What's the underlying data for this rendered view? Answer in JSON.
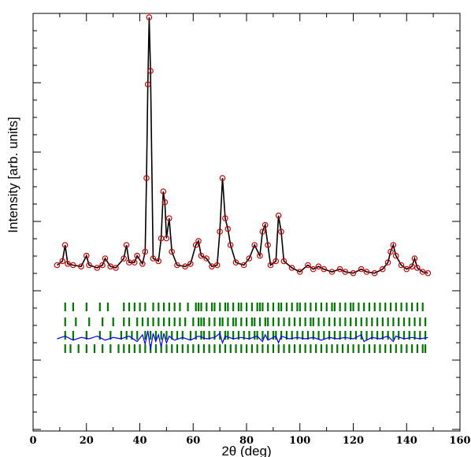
{
  "chart_data": {
    "type": "line",
    "title": "",
    "xlabel": "2θ (deg)",
    "ylabel": "Intensity [arb. units]",
    "xlim": [
      0,
      160
    ],
    "xticks": [
      0,
      20,
      40,
      60,
      80,
      100,
      120,
      140,
      160
    ],
    "x_tick_labels": [
      "0",
      "20",
      "40",
      "60",
      "80",
      "100",
      "120",
      "140",
      "160"
    ],
    "y_tick_labels_shown": false,
    "grid": false,
    "legend": "none",
    "x_range_measured": [
      9,
      148
    ],
    "series": [
      {
        "kind": "observed",
        "marker": "open-circle",
        "color": "#cc0000",
        "points": [
          [
            9,
            0.15
          ],
          [
            11,
            0.18
          ],
          [
            12,
            0.3
          ],
          [
            13,
            0.16
          ],
          [
            15,
            0.15
          ],
          [
            18,
            0.14
          ],
          [
            20,
            0.22
          ],
          [
            21,
            0.15
          ],
          [
            24,
            0.13
          ],
          [
            26,
            0.15
          ],
          [
            27,
            0.2
          ],
          [
            29,
            0.14
          ],
          [
            31,
            0.13
          ],
          [
            34,
            0.2
          ],
          [
            35,
            0.3
          ],
          [
            36,
            0.17
          ],
          [
            38,
            0.17
          ],
          [
            39,
            0.22
          ],
          [
            41,
            0.16
          ],
          [
            42,
            0.25
          ],
          [
            42.5,
            0.8
          ],
          [
            43,
            1.5
          ],
          [
            43.5,
            2.0
          ],
          [
            44,
            1.6
          ],
          [
            45,
            0.2
          ],
          [
            47,
            0.18
          ],
          [
            48,
            0.35
          ],
          [
            48.8,
            0.7
          ],
          [
            49.4,
            0.62
          ],
          [
            50,
            0.35
          ],
          [
            51,
            0.5
          ],
          [
            52,
            0.25
          ],
          [
            54,
            0.15
          ],
          [
            57,
            0.14
          ],
          [
            59,
            0.16
          ],
          [
            61,
            0.3
          ],
          [
            62,
            0.33
          ],
          [
            63,
            0.22
          ],
          [
            65,
            0.2
          ],
          [
            67,
            0.14
          ],
          [
            69,
            0.15
          ],
          [
            70,
            0.4
          ],
          [
            71,
            0.8
          ],
          [
            72,
            0.5
          ],
          [
            73,
            0.42
          ],
          [
            74,
            0.3
          ],
          [
            76,
            0.17
          ],
          [
            79,
            0.15
          ],
          [
            81,
            0.2
          ],
          [
            83,
            0.3
          ],
          [
            85,
            0.22
          ],
          [
            86,
            0.4
          ],
          [
            87,
            0.45
          ],
          [
            88,
            0.3
          ],
          [
            89,
            0.15
          ],
          [
            91,
            0.18
          ],
          [
            92,
            0.52
          ],
          [
            93,
            0.4
          ],
          [
            94,
            0.18
          ],
          [
            97,
            0.13
          ],
          [
            100,
            0.1
          ],
          [
            103,
            0.15
          ],
          [
            105,
            0.12
          ],
          [
            107,
            0.14
          ],
          [
            109,
            0.12
          ],
          [
            112,
            0.1
          ],
          [
            115,
            0.12
          ],
          [
            117,
            0.1
          ],
          [
            120,
            0.09
          ],
          [
            123,
            0.12
          ],
          [
            125,
            0.1
          ],
          [
            128,
            0.09
          ],
          [
            131,
            0.12
          ],
          [
            133,
            0.17
          ],
          [
            134,
            0.25
          ],
          [
            135,
            0.3
          ],
          [
            136,
            0.22
          ],
          [
            138,
            0.15
          ],
          [
            140,
            0.12
          ],
          [
            142,
            0.14
          ],
          [
            143,
            0.2
          ],
          [
            144,
            0.13
          ],
          [
            146,
            0.1
          ],
          [
            148,
            0.09
          ]
        ]
      },
      {
        "kind": "calculated",
        "color": "#000000",
        "points": [
          [
            9,
            0.15
          ],
          [
            11,
            0.18
          ],
          [
            12,
            0.3
          ],
          [
            13,
            0.16
          ],
          [
            15,
            0.15
          ],
          [
            18,
            0.14
          ],
          [
            20,
            0.22
          ],
          [
            21,
            0.15
          ],
          [
            24,
            0.13
          ],
          [
            26,
            0.15
          ],
          [
            27,
            0.2
          ],
          [
            29,
            0.14
          ],
          [
            31,
            0.13
          ],
          [
            34,
            0.2
          ],
          [
            35,
            0.3
          ],
          [
            36,
            0.17
          ],
          [
            38,
            0.17
          ],
          [
            39,
            0.22
          ],
          [
            41,
            0.16
          ],
          [
            42,
            0.25
          ],
          [
            42.5,
            0.8
          ],
          [
            43,
            1.5
          ],
          [
            43.5,
            2.0
          ],
          [
            44,
            1.6
          ],
          [
            45,
            0.2
          ],
          [
            47,
            0.18
          ],
          [
            48,
            0.35
          ],
          [
            48.8,
            0.7
          ],
          [
            49.4,
            0.62
          ],
          [
            50,
            0.35
          ],
          [
            51,
            0.5
          ],
          [
            52,
            0.25
          ],
          [
            54,
            0.15
          ],
          [
            57,
            0.14
          ],
          [
            59,
            0.16
          ],
          [
            61,
            0.3
          ],
          [
            62,
            0.33
          ],
          [
            63,
            0.22
          ],
          [
            65,
            0.2
          ],
          [
            67,
            0.14
          ],
          [
            69,
            0.15
          ],
          [
            70,
            0.4
          ],
          [
            71,
            0.8
          ],
          [
            72,
            0.5
          ],
          [
            73,
            0.42
          ],
          [
            74,
            0.3
          ],
          [
            76,
            0.17
          ],
          [
            79,
            0.15
          ],
          [
            81,
            0.2
          ],
          [
            83,
            0.3
          ],
          [
            85,
            0.22
          ],
          [
            86,
            0.4
          ],
          [
            87,
            0.45
          ],
          [
            88,
            0.3
          ],
          [
            89,
            0.15
          ],
          [
            91,
            0.18
          ],
          [
            92,
            0.52
          ],
          [
            93,
            0.4
          ],
          [
            94,
            0.18
          ],
          [
            97,
            0.13
          ],
          [
            100,
            0.1
          ],
          [
            103,
            0.15
          ],
          [
            105,
            0.12
          ],
          [
            107,
            0.14
          ],
          [
            109,
            0.12
          ],
          [
            112,
            0.1
          ],
          [
            115,
            0.12
          ],
          [
            117,
            0.1
          ],
          [
            120,
            0.09
          ],
          [
            123,
            0.12
          ],
          [
            125,
            0.1
          ],
          [
            128,
            0.09
          ],
          [
            131,
            0.12
          ],
          [
            133,
            0.17
          ],
          [
            134,
            0.25
          ],
          [
            135,
            0.3
          ],
          [
            136,
            0.22
          ],
          [
            138,
            0.15
          ],
          [
            140,
            0.12
          ],
          [
            142,
            0.14
          ],
          [
            143,
            0.2
          ],
          [
            144,
            0.13
          ],
          [
            146,
            0.1
          ],
          [
            148,
            0.09
          ]
        ]
      },
      {
        "kind": "difference",
        "color": "#0000ff",
        "points": [
          [
            9,
            -0.4
          ],
          [
            12,
            -0.38
          ],
          [
            15,
            -0.41
          ],
          [
            18,
            -0.39
          ],
          [
            21,
            -0.4
          ],
          [
            24,
            -0.38
          ],
          [
            27,
            -0.41
          ],
          [
            30,
            -0.39
          ],
          [
            33,
            -0.4
          ],
          [
            36,
            -0.38
          ],
          [
            39,
            -0.42
          ],
          [
            41,
            -0.37
          ],
          [
            42,
            -0.44
          ],
          [
            43,
            -0.34
          ],
          [
            44,
            -0.48
          ],
          [
            45,
            -0.36
          ],
          [
            46,
            -0.42
          ],
          [
            47,
            -0.37
          ],
          [
            48,
            -0.46
          ],
          [
            49,
            -0.36
          ],
          [
            50,
            -0.43
          ],
          [
            51,
            -0.38
          ],
          [
            53,
            -0.41
          ],
          [
            56,
            -0.39
          ],
          [
            59,
            -0.41
          ],
          [
            62,
            -0.38
          ],
          [
            65,
            -0.4
          ],
          [
            68,
            -0.39
          ],
          [
            70,
            -0.36
          ],
          [
            71,
            -0.43
          ],
          [
            72,
            -0.38
          ],
          [
            75,
            -0.4
          ],
          [
            78,
            -0.39
          ],
          [
            81,
            -0.4
          ],
          [
            84,
            -0.38
          ],
          [
            86,
            -0.42
          ],
          [
            87,
            -0.37
          ],
          [
            88,
            -0.41
          ],
          [
            91,
            -0.38
          ],
          [
            92,
            -0.43
          ],
          [
            93,
            -0.38
          ],
          [
            96,
            -0.4
          ],
          [
            99,
            -0.39
          ],
          [
            102,
            -0.4
          ],
          [
            105,
            -0.39
          ],
          [
            108,
            -0.41
          ],
          [
            111,
            -0.39
          ],
          [
            114,
            -0.4
          ],
          [
            117,
            -0.39
          ],
          [
            120,
            -0.4
          ],
          [
            123,
            -0.37
          ],
          [
            124,
            -0.42
          ],
          [
            127,
            -0.39
          ],
          [
            130,
            -0.4
          ],
          [
            133,
            -0.38
          ],
          [
            135,
            -0.42
          ],
          [
            136,
            -0.38
          ],
          [
            139,
            -0.4
          ],
          [
            142,
            -0.39
          ],
          [
            145,
            -0.4
          ],
          [
            148,
            -0.39
          ]
        ]
      }
    ],
    "reflection_markers": {
      "color": "#007700",
      "rows": [
        {
          "positions": [
            12,
            15,
            20,
            25,
            28,
            34,
            36,
            38,
            40,
            42,
            45,
            47,
            49,
            51,
            53,
            55,
            58,
            61,
            62,
            63,
            65,
            67,
            68,
            70,
            72,
            73,
            75,
            77,
            78,
            80,
            82,
            84,
            85,
            86,
            88,
            90,
            92,
            93,
            95,
            97,
            99,
            100,
            102,
            104,
            106,
            108,
            110,
            112,
            113,
            115,
            117,
            119,
            120,
            122,
            124,
            126,
            128,
            130,
            132,
            134,
            136,
            138,
            140,
            142,
            144,
            146
          ]
        },
        {
          "positions": [
            12,
            16,
            21,
            26,
            30,
            34,
            36,
            39,
            41,
            43,
            45,
            47,
            49,
            51,
            53,
            55,
            57,
            60,
            62,
            63,
            64,
            66,
            68,
            70,
            71,
            73,
            75,
            76,
            78,
            80,
            82,
            83,
            85,
            87,
            88,
            90,
            92,
            94,
            96,
            98,
            100,
            102,
            104,
            105,
            107,
            109,
            111,
            113,
            115,
            117,
            119,
            121,
            123,
            125,
            127,
            129,
            131,
            133,
            135,
            137,
            139,
            141,
            143,
            145,
            147
          ]
        },
        {
          "positions": [
            12,
            15,
            20,
            25,
            29,
            33,
            35,
            37,
            39,
            42,
            44,
            46,
            48,
            50,
            52,
            54,
            56,
            59,
            61,
            63,
            64,
            66,
            68,
            70,
            72,
            73,
            75,
            77,
            79,
            81,
            83,
            84,
            86,
            88,
            90,
            91,
            93,
            95,
            97,
            99,
            101,
            103,
            105,
            107,
            109,
            111,
            113,
            115,
            117,
            119,
            121,
            123,
            125,
            127,
            129,
            131,
            133,
            135,
            137,
            139,
            141,
            143,
            145,
            147
          ]
        },
        {
          "positions": [
            12,
            14,
            17,
            20,
            23,
            26,
            29,
            32,
            34,
            36,
            38,
            40,
            42,
            44,
            46,
            48,
            50,
            52,
            54,
            56,
            58,
            60,
            62,
            64,
            66,
            68,
            70,
            72,
            74,
            76,
            78,
            80,
            82,
            84,
            86,
            88,
            90,
            92,
            94,
            96,
            98,
            100,
            102,
            104,
            106,
            108,
            110,
            112,
            114,
            116,
            118,
            120,
            122,
            124,
            126,
            128,
            130,
            132,
            134,
            136,
            138,
            140,
            142,
            144,
            146,
            147
          ]
        }
      ]
    }
  }
}
